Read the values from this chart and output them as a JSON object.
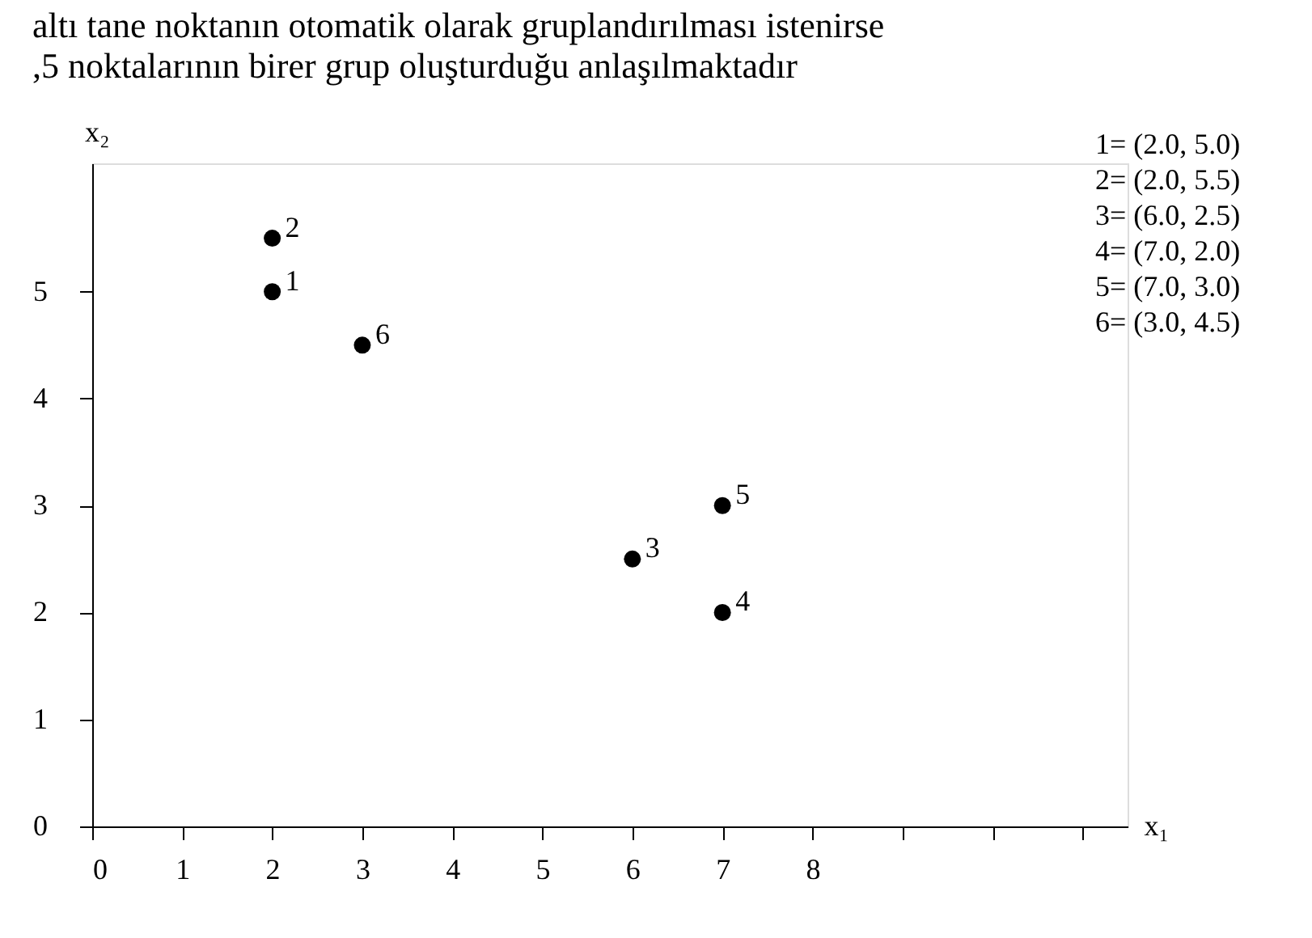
{
  "chart_data": {
    "type": "scatter",
    "title": "altı tane noktanın otomatik olarak gruplandırılması istenirse",
    "subtitle": ",5 noktalarının birer grup oluşturduğu anlaşılmaktadır",
    "xlabel": "x₁",
    "ylabel": "x₂",
    "x": [
      2.0,
      2.0,
      6.0,
      7.0,
      7.0,
      3.0
    ],
    "series": [
      {
        "color": "#000000",
        "values": [
          5.0,
          5.5,
          2.5,
          2.0,
          3.0,
          4.5
        ]
      }
    ],
    "annotations": [
      {
        "text": "1",
        "x": 2.0,
        "y": 5.0
      },
      {
        "text": "2",
        "x": 2.0,
        "y": 5.5
      },
      {
        "text": "3",
        "x": 6.0,
        "y": 2.5
      },
      {
        "text": "4",
        "x": 7.0,
        "y": 2.0
      },
      {
        "text": "5",
        "x": 7.0,
        "y": 3.0
      },
      {
        "text": "6",
        "x": 3.0,
        "y": 4.5
      },
      "1= (2.0, 5.0)",
      "2= (2.0, 5.5)",
      "3= (6.0, 2.5)",
      "4= (7.0, 2.0)",
      "5= (7.0, 3.0)",
      "6= (3.0, 4.5)"
    ],
    "xlim": [
      0,
      11.5
    ],
    "ylim": [
      0,
      6.2
    ],
    "xticks": [
      0,
      1,
      2,
      3,
      4,
      5,
      6,
      7,
      8,
      {
        "value": 9,
        "label": null
      },
      {
        "value": 10,
        "label": null
      },
      {
        "value": 11,
        "label": null
      }
    ],
    "yticks": [
      0,
      1,
      2,
      3,
      4,
      5
    ],
    "marker": "circle",
    "grid": false
  }
}
